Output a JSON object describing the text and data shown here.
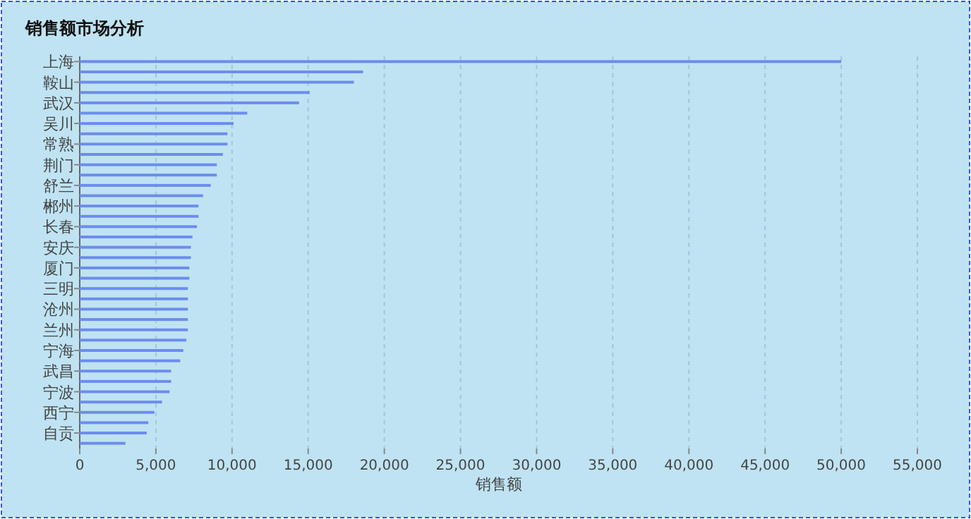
{
  "chart_data": {
    "type": "bar",
    "orientation": "horizontal",
    "title": "销售额市场分析",
    "xlabel": "销售额",
    "categories": [
      "上海",
      null,
      "鞍山",
      null,
      "武汉",
      null,
      "吴川",
      null,
      "常熟",
      null,
      "荆门",
      null,
      "舒兰",
      null,
      "郴州",
      null,
      "长春",
      null,
      "安庆",
      null,
      "厦门",
      null,
      "三明",
      null,
      "沧州",
      null,
      "兰州",
      null,
      "宁海",
      null,
      "武昌",
      null,
      "宁波",
      null,
      "西宁",
      null,
      "自贡",
      null
    ],
    "values": [
      50000,
      18600,
      18000,
      15100,
      14400,
      11000,
      10100,
      9700,
      9700,
      9400,
      9000,
      9000,
      8600,
      8100,
      7800,
      7800,
      7700,
      7400,
      7300,
      7300,
      7200,
      7200,
      7100,
      7100,
      7100,
      7100,
      7100,
      7000,
      6800,
      6600,
      6000,
      6000,
      5900,
      5400,
      4900,
      4500,
      4400,
      3000
    ],
    "color": "#6c8cf0",
    "xlim": [
      0,
      55000
    ],
    "xticks": [
      {
        "value": 0,
        "label": "0"
      },
      {
        "value": 5000,
        "label": "5,000"
      },
      {
        "value": 10000,
        "label": "10,000"
      },
      {
        "value": 15000,
        "label": "15,000"
      },
      {
        "value": 20000,
        "label": "20,000"
      },
      {
        "value": 25000,
        "label": "25,000"
      },
      {
        "value": 30000,
        "label": "30,000"
      },
      {
        "value": 35000,
        "label": "35,000"
      },
      {
        "value": 40000,
        "label": "40,000"
      },
      {
        "value": 45000,
        "label": "45,000"
      },
      {
        "value": 50000,
        "label": "50,000"
      },
      {
        "value": 55000,
        "label": "55,000"
      }
    ],
    "grid": "x"
  }
}
